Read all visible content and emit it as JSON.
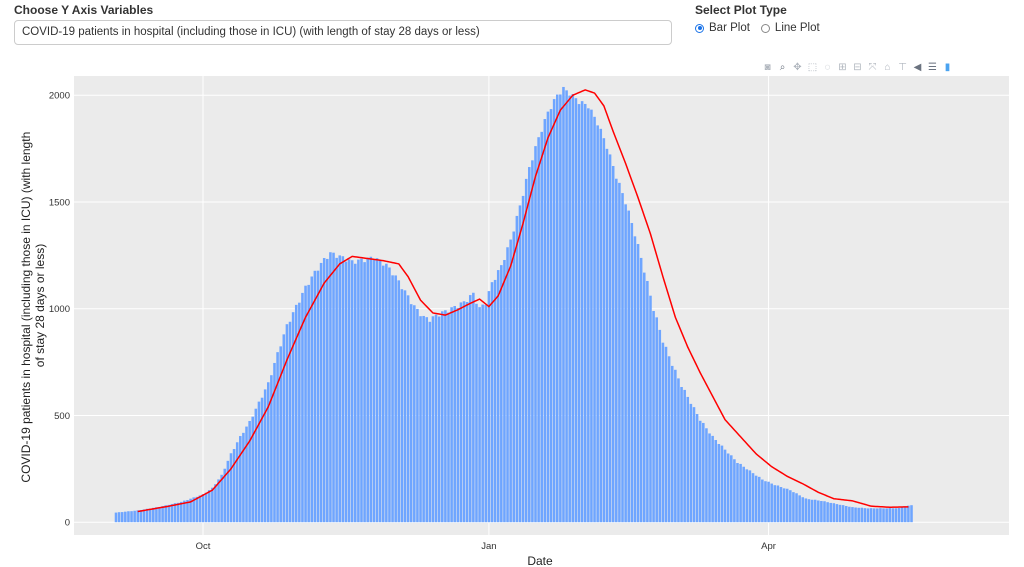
{
  "controls": {
    "yvar_label": "Choose Y Axis Variables",
    "yvar_value": "COVID-19 patients in hospital (including those in ICU) (with length of stay 28 days or less)",
    "plot_type_label": "Select Plot Type",
    "plot_types": [
      {
        "label": "Bar Plot",
        "checked": true
      },
      {
        "label": "Line Plot",
        "checked": false
      }
    ]
  },
  "modebar": [
    "camera-icon",
    "zoom-icon",
    "pan-icon",
    "box-select-icon",
    "lasso-icon",
    "zoom-in-icon",
    "zoom-out-icon",
    "autoscale-icon",
    "reset-axes-icon",
    "spike-lines-icon",
    "hover-closest-icon",
    "hover-compare-icon",
    "plotly-logo-icon"
  ],
  "chart_data": {
    "type": "bar",
    "bar_color": "#6ea5ff",
    "line_color": "#ff0000",
    "plot_bg": "#ebebeb",
    "xlabel": "Date",
    "ylabel_lines": [
      "COVID-19 patients in hospital (including those in ICU) (with length",
      "of stay 28 days or less)"
    ],
    "x_start": "2020-09-03",
    "ylim": [
      -60,
      2090
    ],
    "y_ticks": [
      0,
      500,
      1000,
      1500,
      2000
    ],
    "x_ticks": [
      {
        "label": "Oct",
        "date": "2020-10-01"
      },
      {
        "label": "Jan",
        "date": "2021-01-01"
      },
      {
        "label": "Apr",
        "date": "2021-04-01"
      }
    ],
    "bar_anchors": [
      [
        "2020-09-03",
        45
      ],
      [
        "2020-09-10",
        55
      ],
      [
        "2020-09-17",
        72
      ],
      [
        "2020-09-24",
        95
      ],
      [
        "2020-10-01",
        130
      ],
      [
        "2020-10-04",
        160
      ],
      [
        "2020-10-07",
        220
      ],
      [
        "2020-10-10",
        320
      ],
      [
        "2020-10-13",
        400
      ],
      [
        "2020-10-16",
        470
      ],
      [
        "2020-10-19",
        560
      ],
      [
        "2020-10-22",
        650
      ],
      [
        "2020-10-25",
        790
      ],
      [
        "2020-10-28",
        920
      ],
      [
        "2020-10-31",
        1010
      ],
      [
        "2020-11-03",
        1100
      ],
      [
        "2020-11-06",
        1170
      ],
      [
        "2020-11-09",
        1230
      ],
      [
        "2020-11-11",
        1260
      ],
      [
        "2020-11-14",
        1245
      ],
      [
        "2020-11-18",
        1220
      ],
      [
        "2020-11-22",
        1230
      ],
      [
        "2020-11-25",
        1240
      ],
      [
        "2020-11-29",
        1205
      ],
      [
        "2020-12-02",
        1150
      ],
      [
        "2020-12-05",
        1080
      ],
      [
        "2020-12-08",
        1010
      ],
      [
        "2020-12-11",
        960
      ],
      [
        "2020-12-13",
        950
      ],
      [
        "2020-12-16",
        975
      ],
      [
        "2020-12-20",
        1000
      ],
      [
        "2020-12-24",
        1030
      ],
      [
        "2020-12-27",
        1070
      ],
      [
        "2020-12-29",
        1000
      ],
      [
        "2020-12-31",
        1030
      ],
      [
        "2021-01-02",
        1120
      ],
      [
        "2021-01-05",
        1200
      ],
      [
        "2021-01-08",
        1320
      ],
      [
        "2021-01-11",
        1480
      ],
      [
        "2021-01-14",
        1660
      ],
      [
        "2021-01-17",
        1800
      ],
      [
        "2021-01-20",
        1920
      ],
      [
        "2021-01-23",
        2000
      ],
      [
        "2021-01-25",
        2030
      ],
      [
        "2021-01-27",
        2010
      ],
      [
        "2021-01-30",
        1970
      ],
      [
        "2021-02-02",
        1950
      ],
      [
        "2021-02-05",
        1870
      ],
      [
        "2021-02-08",
        1760
      ],
      [
        "2021-02-11",
        1620
      ],
      [
        "2021-02-14",
        1500
      ],
      [
        "2021-02-17",
        1350
      ],
      [
        "2021-02-20",
        1180
      ],
      [
        "2021-02-23",
        1000
      ],
      [
        "2021-02-26",
        850
      ],
      [
        "2021-03-01",
        740
      ],
      [
        "2021-03-04",
        640
      ],
      [
        "2021-03-07",
        560
      ],
      [
        "2021-03-10",
        480
      ],
      [
        "2021-03-14",
        400
      ],
      [
        "2021-03-18",
        340
      ],
      [
        "2021-03-22",
        280
      ],
      [
        "2021-03-26",
        240
      ],
      [
        "2021-03-30",
        200
      ],
      [
        "2021-04-03",
        175
      ],
      [
        "2021-04-08",
        150
      ],
      [
        "2021-04-13",
        110
      ],
      [
        "2021-04-18",
        100
      ],
      [
        "2021-04-23",
        85
      ],
      [
        "2021-04-28",
        70
      ],
      [
        "2021-05-03",
        65
      ],
      [
        "2021-05-08",
        65
      ],
      [
        "2021-05-13",
        66
      ],
      [
        "2021-05-17",
        80
      ]
    ],
    "line_anchors": [
      [
        "2020-09-10",
        50
      ],
      [
        "2020-09-20",
        75
      ],
      [
        "2020-09-27",
        95
      ],
      [
        "2020-10-04",
        150
      ],
      [
        "2020-10-10",
        250
      ],
      [
        "2020-10-16",
        380
      ],
      [
        "2020-10-22",
        540
      ],
      [
        "2020-10-28",
        760
      ],
      [
        "2020-11-03",
        960
      ],
      [
        "2020-11-09",
        1120
      ],
      [
        "2020-11-14",
        1210
      ],
      [
        "2020-11-18",
        1245
      ],
      [
        "2020-11-23",
        1235
      ],
      [
        "2020-11-28",
        1225
      ],
      [
        "2020-12-03",
        1210
      ],
      [
        "2020-12-06",
        1150
      ],
      [
        "2020-12-10",
        1040
      ],
      [
        "2020-12-14",
        980
      ],
      [
        "2020-12-18",
        970
      ],
      [
        "2020-12-22",
        995
      ],
      [
        "2020-12-26",
        1025
      ],
      [
        "2020-12-29",
        1045
      ],
      [
        "2021-01-01",
        1010
      ],
      [
        "2021-01-04",
        1060
      ],
      [
        "2021-01-08",
        1200
      ],
      [
        "2021-01-12",
        1400
      ],
      [
        "2021-01-16",
        1620
      ],
      [
        "2021-01-20",
        1800
      ],
      [
        "2021-01-24",
        1930
      ],
      [
        "2021-01-28",
        2000
      ],
      [
        "2021-02-01",
        2025
      ],
      [
        "2021-02-04",
        2010
      ],
      [
        "2021-02-07",
        1950
      ],
      [
        "2021-02-10",
        1830
      ],
      [
        "2021-02-14",
        1680
      ],
      [
        "2021-02-18",
        1520
      ],
      [
        "2021-02-22",
        1350
      ],
      [
        "2021-02-26",
        1150
      ],
      [
        "2021-03-02",
        960
      ],
      [
        "2021-03-06",
        820
      ],
      [
        "2021-03-10",
        700
      ],
      [
        "2021-03-14",
        590
      ],
      [
        "2021-03-18",
        480
      ],
      [
        "2021-03-23",
        400
      ],
      [
        "2021-03-28",
        320
      ],
      [
        "2021-04-02",
        260
      ],
      [
        "2021-04-07",
        215
      ],
      [
        "2021-04-12",
        180
      ],
      [
        "2021-04-17",
        140
      ],
      [
        "2021-04-22",
        110
      ],
      [
        "2021-04-28",
        100
      ],
      [
        "2021-05-04",
        75
      ],
      [
        "2021-05-10",
        70
      ],
      [
        "2021-05-16",
        72
      ]
    ]
  }
}
